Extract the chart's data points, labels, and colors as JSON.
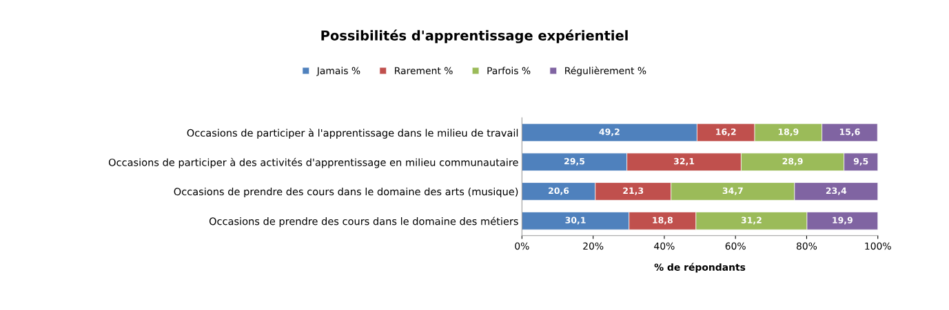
{
  "chart_data": {
    "type": "bar",
    "orientation": "horizontal",
    "stacked": true,
    "title": "Possibilités d'apprentissage expérientiel",
    "xlabel": "% de répondants",
    "legend": "top",
    "grid": false,
    "categories": [
      "Occasions de participer à l'apprentissage dans le milieu de travail",
      "Occasions de participer à des activités d'apprentissage en milieu communautaire",
      "Occasions de prendre des cours dans le domaine des arts (musique)",
      "Occasions de prendre des cours dans le domaine des métiers"
    ],
    "series": [
      {
        "name": "Jamais %",
        "color": "#4f81bd",
        "values": [
          49.2,
          29.5,
          20.6,
          30.1
        ],
        "value_labels": [
          "49,2",
          "29,5",
          "20,6",
          "30,1"
        ]
      },
      {
        "name": "Rarement %",
        "color": "#c0504d",
        "values": [
          16.2,
          32.1,
          21.3,
          18.8
        ],
        "value_labels": [
          "16,2",
          "32,1",
          "21,3",
          "18,8"
        ]
      },
      {
        "name": "Parfois %",
        "color": "#9bbb59",
        "values": [
          18.9,
          28.9,
          34.7,
          31.2
        ],
        "value_labels": [
          "18,9",
          "28,9",
          "34,7",
          "31,2"
        ]
      },
      {
        "name": "Régulièrement %",
        "color": "#8064a2",
        "values": [
          15.6,
          9.5,
          23.4,
          19.9
        ],
        "value_labels": [
          "15,6",
          "9,5",
          "23,4",
          "19,9"
        ]
      }
    ],
    "xlim": [
      0,
      100
    ],
    "xticks": [
      {
        "value": 0,
        "label": "0%"
      },
      {
        "value": 20,
        "label": "20%"
      },
      {
        "value": 40,
        "label": "40%"
      },
      {
        "value": 60,
        "label": "60%"
      },
      {
        "value": 80,
        "label": "80%"
      },
      {
        "value": 100,
        "label": "100%"
      }
    ]
  }
}
